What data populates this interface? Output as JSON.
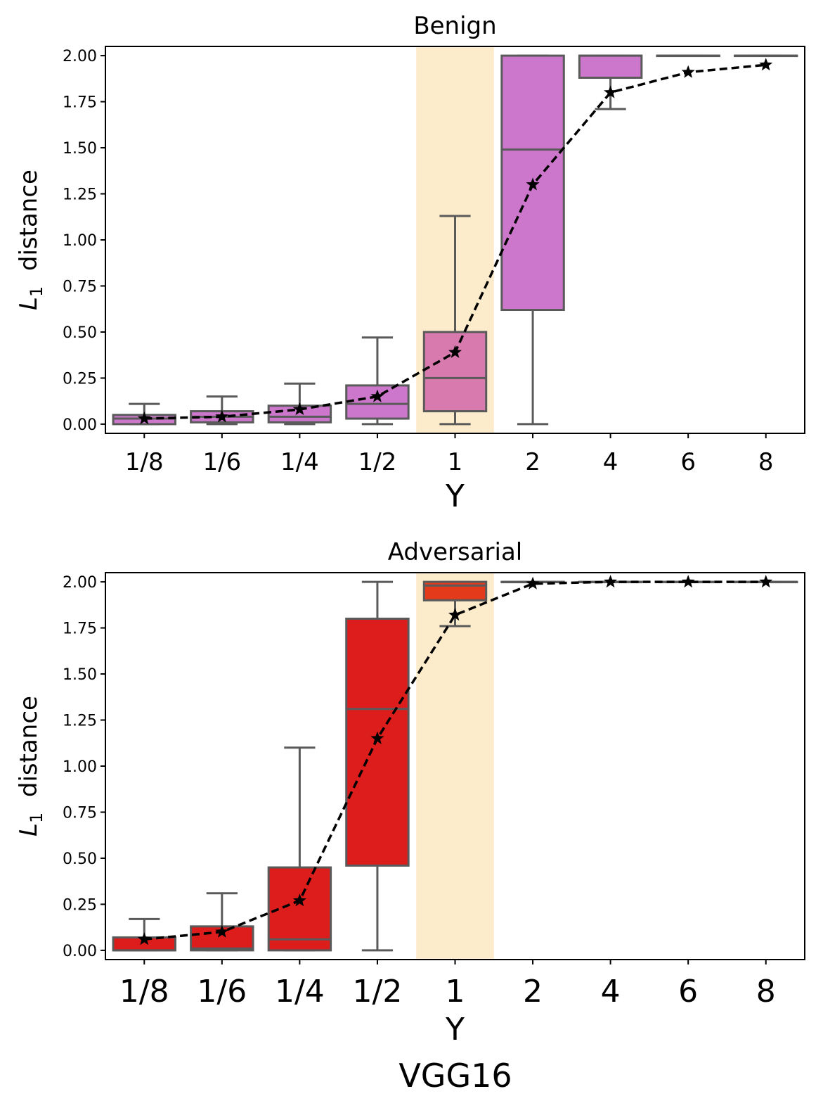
{
  "figure": {
    "caption": "VGG16"
  },
  "chart_data": [
    {
      "type": "box",
      "title": "Benign",
      "xlabel": "Y",
      "ylabel_main": "L",
      "ylabel_sub": "1",
      "ylabel_rest": "distance",
      "categories": [
        "1/8",
        "1/6",
        "1/4",
        "1/2",
        "1",
        "2",
        "4",
        "6",
        "8"
      ],
      "yticks": [
        "0.00",
        "0.25",
        "0.50",
        "0.75",
        "1.00",
        "1.25",
        "1.50",
        "1.75",
        "2.00"
      ],
      "ylim": [
        -0.05,
        2.05
      ],
      "highlight_category": "1",
      "highlight_color": "#fdeccc",
      "boxes": [
        {
          "wlo": 0.0,
          "q1": 0.0,
          "median": 0.03,
          "q3": 0.05,
          "whi": 0.11,
          "color": "#cc77cc"
        },
        {
          "wlo": 0.0,
          "q1": 0.01,
          "median": 0.04,
          "q3": 0.07,
          "whi": 0.15,
          "color": "#cc77cc"
        },
        {
          "wlo": 0.0,
          "q1": 0.01,
          "median": 0.04,
          "q3": 0.1,
          "whi": 0.22,
          "color": "#cc77cc"
        },
        {
          "wlo": 0.0,
          "q1": 0.03,
          "median": 0.11,
          "q3": 0.21,
          "whi": 0.47,
          "color": "#cc77cc"
        },
        {
          "wlo": 0.0,
          "q1": 0.07,
          "median": 0.25,
          "q3": 0.5,
          "whi": 1.13,
          "color": "#d97aaf"
        },
        {
          "wlo": 0.0,
          "q1": 0.62,
          "median": 1.49,
          "q3": 2.0,
          "whi": 2.0,
          "color": "#cc77cc"
        },
        {
          "wlo": 1.71,
          "q1": 1.88,
          "median": 2.0,
          "q3": 2.0,
          "whi": 2.0,
          "color": "#cc77cc"
        },
        {
          "wlo": 2.0,
          "q1": 2.0,
          "median": 2.0,
          "q3": 2.0,
          "whi": 2.0,
          "color": "#cc77cc"
        },
        {
          "wlo": 2.0,
          "q1": 2.0,
          "median": 2.0,
          "q3": 2.0,
          "whi": 2.0,
          "color": "#cc77cc"
        }
      ],
      "mean_line": [
        0.03,
        0.04,
        0.08,
        0.15,
        0.39,
        1.3,
        1.8,
        1.91,
        1.95
      ],
      "mean_style": "black dashed line with star markers",
      "grid": false
    },
    {
      "type": "box",
      "title": "Adversarial",
      "xlabel": "Y",
      "ylabel_main": "L",
      "ylabel_sub": "1",
      "ylabel_rest": "distance",
      "categories": [
        "1/8",
        "1/6",
        "1/4",
        "1/2",
        "1",
        "2",
        "4",
        "6",
        "8"
      ],
      "yticks": [
        "0.00",
        "0.25",
        "0.50",
        "0.75",
        "1.00",
        "1.25",
        "1.50",
        "1.75",
        "2.00"
      ],
      "ylim": [
        -0.05,
        2.05
      ],
      "highlight_category": "1",
      "highlight_color": "#fdeccc",
      "boxes": [
        {
          "wlo": 0.0,
          "q1": 0.0,
          "median": 0.0,
          "q3": 0.07,
          "whi": 0.17,
          "color": "#dd1c1c"
        },
        {
          "wlo": 0.0,
          "q1": 0.0,
          "median": 0.01,
          "q3": 0.13,
          "whi": 0.31,
          "color": "#dd1c1c"
        },
        {
          "wlo": 0.0,
          "q1": 0.0,
          "median": 0.06,
          "q3": 0.45,
          "whi": 1.1,
          "color": "#dd1c1c"
        },
        {
          "wlo": 0.0,
          "q1": 0.46,
          "median": 1.31,
          "q3": 1.8,
          "whi": 2.0,
          "color": "#dd1c1c"
        },
        {
          "wlo": 1.76,
          "q1": 1.9,
          "median": 1.98,
          "q3": 2.0,
          "whi": 2.0,
          "color": "#e33a1c"
        },
        {
          "wlo": 2.0,
          "q1": 2.0,
          "median": 2.0,
          "q3": 2.0,
          "whi": 2.0,
          "color": "#dd1c1c"
        },
        {
          "wlo": 2.0,
          "q1": 2.0,
          "median": 2.0,
          "q3": 2.0,
          "whi": 2.0,
          "color": "#dd1c1c"
        },
        {
          "wlo": 2.0,
          "q1": 2.0,
          "median": 2.0,
          "q3": 2.0,
          "whi": 2.0,
          "color": "#dd1c1c"
        },
        {
          "wlo": 2.0,
          "q1": 2.0,
          "median": 2.0,
          "q3": 2.0,
          "whi": 2.0,
          "color": "#dd1c1c"
        }
      ],
      "mean_line": [
        0.06,
        0.1,
        0.27,
        1.15,
        1.82,
        1.99,
        2.0,
        2.0,
        2.0
      ],
      "mean_style": "black dashed line with star markers",
      "grid": false
    }
  ]
}
